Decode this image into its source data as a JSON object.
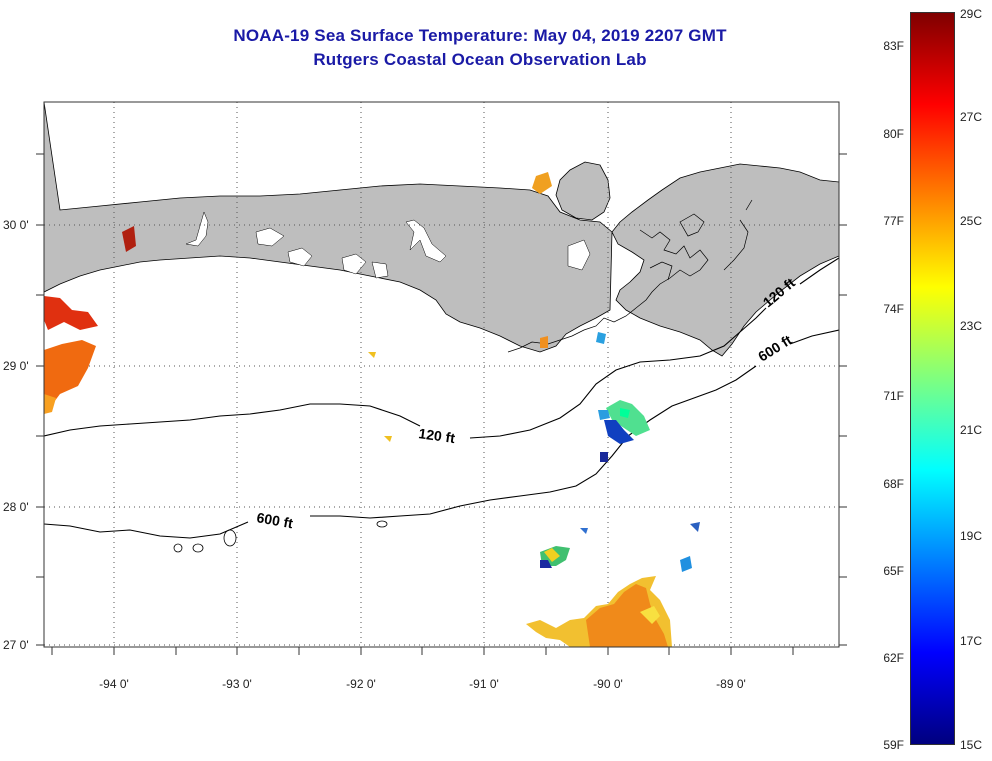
{
  "title": {
    "line1": "NOAA-19 Sea Surface Temperature:  May 04, 2019 2207 GMT",
    "line2": "Rutgers Coastal Ocean Observation Lab"
  },
  "colors": {
    "title": "#1a1aa6",
    "land": "#bebebe",
    "water": "#ffffff",
    "contour": "#000000",
    "grid": "#555555"
  },
  "map": {
    "lon_ticks": [
      {
        "value": -94,
        "label": "-94 0'"
      },
      {
        "value": -93,
        "label": "-93 0'"
      },
      {
        "value": -92,
        "label": "-92 0'"
      },
      {
        "value": -91,
        "label": "-91 0'"
      },
      {
        "value": -90,
        "label": "-90 0'"
      },
      {
        "value": -89,
        "label": "-89 0'"
      }
    ],
    "lat_ticks": [
      {
        "value": 30,
        "label": "30 0'"
      },
      {
        "value": 29,
        "label": "29 0'"
      },
      {
        "value": 28,
        "label": "28 0'"
      },
      {
        "value": 27,
        "label": "27 0'"
      }
    ],
    "contour_labels": [
      {
        "text": "120 ft",
        "name": "contour-label-120ft-west"
      },
      {
        "text": "600 ft",
        "name": "contour-label-600ft-west"
      },
      {
        "text": "120 ft",
        "name": "contour-label-120ft-east"
      },
      {
        "text": "600 ft",
        "name": "contour-label-600ft-east"
      }
    ]
  },
  "colorbar": {
    "f_labels": [
      "83F",
      "80F",
      "77F",
      "74F",
      "71F",
      "68F",
      "65F",
      "62F",
      "59F"
    ],
    "c_labels": [
      "29C",
      "27C",
      "25C",
      "23C",
      "21C",
      "19C",
      "17C",
      "15C"
    ],
    "c_range": [
      15,
      29
    ],
    "stops": [
      "#00007f",
      "#0000ff",
      "#007fff",
      "#00ffff",
      "#7fff7f",
      "#ffff00",
      "#ff7f00",
      "#ff0000",
      "#7f0000"
    ]
  }
}
